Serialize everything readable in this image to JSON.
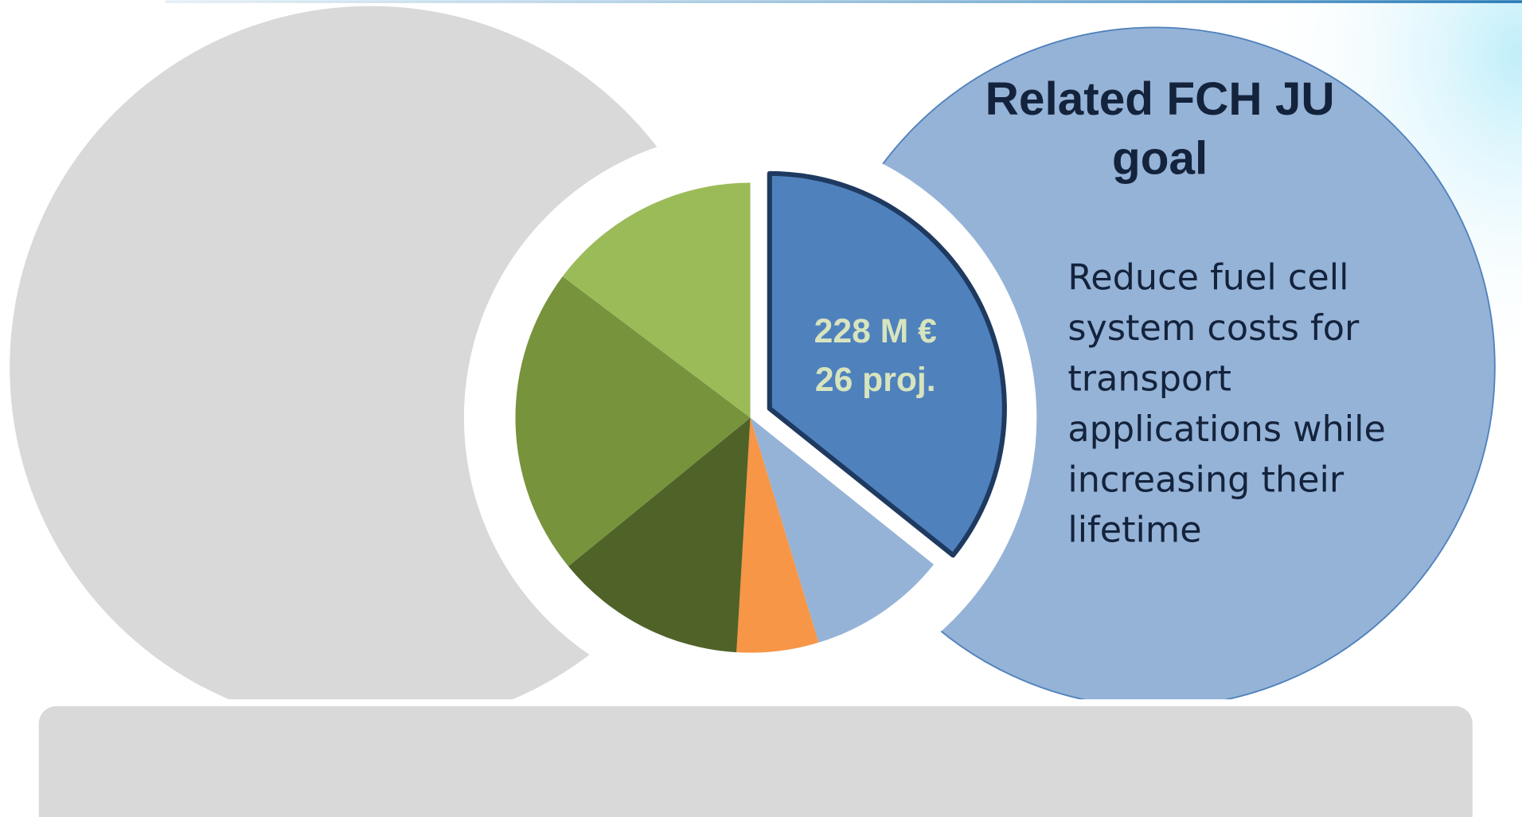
{
  "chart_data": {
    "type": "pie",
    "values": [
      228,
      61,
      36,
      84,
      135,
      94
    ],
    "value_labels": [
      "228 M €",
      null,
      null,
      null,
      null,
      null
    ],
    "counts": [
      26,
      null,
      null,
      null,
      null,
      null
    ],
    "count_labels": [
      "26 proj.",
      null,
      null,
      null,
      null,
      null
    ],
    "colors": [
      "#4f81bd",
      "#95b3d7",
      "#f79646",
      "#4f6228",
      "#77933c",
      "#9bbb59"
    ],
    "exploded": [
      true,
      false,
      false,
      false,
      false,
      false
    ]
  },
  "goal": {
    "title": "Related FCH JU goal",
    "text": "Reduce fuel cell system costs for transport applications while increasing their lifetime"
  }
}
